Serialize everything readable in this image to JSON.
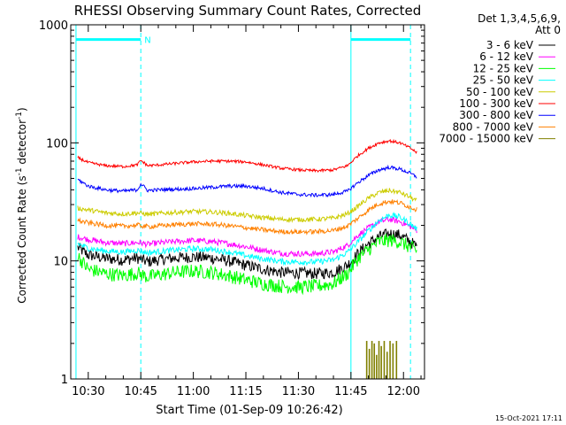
{
  "title": "RHESSI Observing Summary Count Rates, Corrected",
  "footer_timestamp": "15-Oct-2021 17:11",
  "legend": {
    "header_line1": "Det 1,3,4,5,6,9,",
    "header_line2": "Att 0",
    "position": "right, outside plot"
  },
  "chart_data": {
    "type": "line",
    "title": "RHESSI Observing Summary Count Rates, Corrected",
    "xlabel": "Start Time (01-Sep-09 10:26:42)",
    "ylabel": "Corrected Count Rate (s",
    "ylabel_sup1": "-1",
    "ylabel_mid": " detector",
    "ylabel_sup2": "-1",
    "ylabel_end": ")",
    "y_scale": "log",
    "ylim": [
      1,
      1000
    ],
    "xlim": [
      "10:25:00",
      "12:06:00"
    ],
    "x_ticks": [
      "10:30",
      "10:45",
      "11:00",
      "11:15",
      "11:30",
      "11:45",
      "12:00"
    ],
    "y_ticks": [
      "1",
      "10",
      "100",
      "1000"
    ],
    "x": [
      "10:27",
      "10:30",
      "10:35",
      "10:40",
      "10:44",
      "10:45",
      "10:47",
      "10:50",
      "10:55",
      "11:00",
      "11:05",
      "11:10",
      "11:15",
      "11:20",
      "11:25",
      "11:30",
      "11:35",
      "11:40",
      "11:44",
      "11:47",
      "11:50",
      "11:53",
      "11:56",
      "11:59",
      "12:02",
      "12:04"
    ],
    "series": [
      {
        "name": "3 - 6 keV",
        "color": "#000000",
        "noise": 0.05,
        "values": [
          13,
          11.2,
          10.5,
          10.2,
          10.6,
          10.3,
          9.8,
          10.2,
          10.6,
          10.8,
          10.6,
          10.0,
          9.2,
          8.5,
          8.0,
          7.9,
          7.8,
          8.0,
          9.2,
          11.5,
          14.0,
          16.0,
          17.0,
          16.5,
          14.5,
          13.0
        ]
      },
      {
        "name": "6 - 12 keV",
        "color": "#ff00ff",
        "noise": 0.025,
        "values": [
          16,
          15.2,
          14.3,
          14.0,
          14.3,
          14.2,
          13.8,
          14.2,
          14.6,
          14.9,
          14.6,
          14.0,
          13.2,
          12.3,
          11.6,
          11.5,
          11.5,
          11.9,
          13.5,
          16.5,
          19.0,
          21.5,
          22.5,
          21.5,
          19.5,
          18.0
        ]
      },
      {
        "name": "12 - 25 keV",
        "color": "#00ff00",
        "noise": 0.06,
        "values": [
          11,
          8.5,
          7.8,
          7.5,
          7.9,
          7.7,
          7.3,
          7.6,
          8.0,
          8.2,
          8.0,
          7.5,
          6.9,
          6.4,
          6.1,
          6.0,
          6.1,
          6.4,
          7.8,
          10.5,
          12.5,
          14.5,
          15.0,
          14.5,
          13.0,
          12.0
        ]
      },
      {
        "name": "25 - 50 keV",
        "color": "#00ffff",
        "noise": 0.025,
        "values": [
          14,
          12.8,
          12.1,
          11.9,
          12.3,
          12.1,
          11.7,
          12.0,
          12.4,
          12.7,
          12.5,
          11.9,
          11.1,
          10.4,
          9.9,
          9.8,
          9.8,
          10.2,
          11.8,
          14.5,
          18.0,
          22.0,
          24.5,
          23.5,
          20.5,
          18.5
        ]
      },
      {
        "name": "50 - 100 keV",
        "color": "#cccc00",
        "noise": 0.02,
        "values": [
          28,
          27,
          25.5,
          25.0,
          25.5,
          25.3,
          24.8,
          25.2,
          25.8,
          26.2,
          26.0,
          25.3,
          24.2,
          23.2,
          22.5,
          22.4,
          22.5,
          23.0,
          25.0,
          29.0,
          34.0,
          38.0,
          39.5,
          38.0,
          34.5,
          32.0
        ]
      },
      {
        "name": "100 - 300 keV",
        "color": "#ff0000",
        "noise": 0.012,
        "values": [
          75,
          68,
          64,
          63,
          65,
          71,
          64,
          65,
          67,
          69,
          70,
          70,
          69,
          65,
          61,
          59,
          58,
          59,
          64,
          78,
          90,
          100,
          104,
          100,
          90,
          82
        ]
      },
      {
        "name": "300 - 800 keV",
        "color": "#0000ff",
        "noise": 0.015,
        "values": [
          49,
          43,
          40,
          39,
          40,
          45,
          39.5,
          40,
          40.5,
          41,
          42,
          43,
          43,
          41,
          38,
          36.5,
          36,
          36.5,
          39,
          46,
          53,
          59,
          62,
          60,
          55,
          51
        ]
      },
      {
        "name": "800 - 7000 keV",
        "color": "#ff8000",
        "noise": 0.02,
        "values": [
          22,
          21,
          20,
          19.7,
          20.1,
          19.9,
          19.5,
          19.8,
          20.3,
          20.6,
          20.5,
          19.9,
          19.1,
          18.3,
          17.7,
          17.6,
          17.7,
          18.1,
          19.7,
          23.0,
          27.0,
          30.5,
          32.0,
          31.0,
          28.5,
          27.0
        ]
      },
      {
        "name": "7000 - 15000 keV",
        "color": "#808000",
        "noise": 0,
        "values": [
          1,
          1,
          1,
          1,
          1,
          1,
          1,
          1,
          1,
          1,
          1,
          1,
          1,
          1,
          1,
          1,
          1,
          1,
          1,
          1,
          1,
          1,
          1,
          1,
          1,
          1
        ]
      }
    ],
    "burst_series": {
      "series": "7000 - 15000 keV",
      "x": [
        "11:49:30",
        "11:50:15",
        "11:51:00",
        "11:51:40",
        "11:52:20",
        "11:53:00",
        "11:53:40",
        "11:54:30",
        "11:55:20",
        "11:56:10",
        "11:57:00",
        "11:58:00"
      ],
      "values": [
        2.1,
        1.8,
        2.1,
        2.0,
        1.6,
        2.1,
        1.9,
        2.1,
        1.7,
        2.1,
        2.0,
        2.1
      ]
    },
    "observing_bars": {
      "color": "#00ffff",
      "label": "N",
      "level": 750,
      "segments": [
        [
          "10:26:30",
          "10:45:00"
        ],
        [
          "11:45:00",
          "12:02:00"
        ]
      ],
      "solid_lines": [
        "10:26:30",
        "11:45:00"
      ],
      "dashed_lines": [
        "10:45:00",
        "12:02:00"
      ]
    }
  }
}
